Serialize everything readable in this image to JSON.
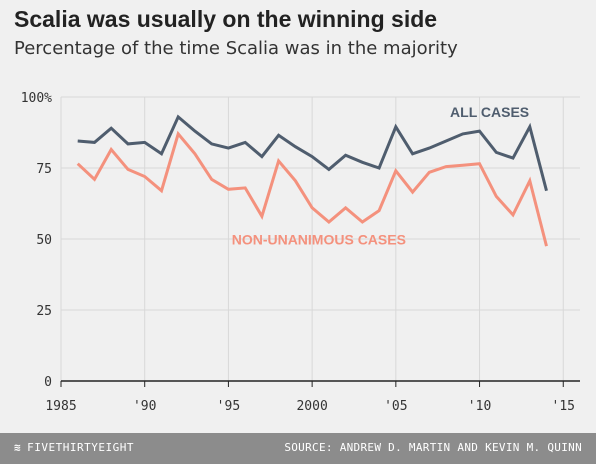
{
  "header": {
    "title": "Scalia was usually on the winning side",
    "subtitle": "Percentage of the time Scalia was in the majority"
  },
  "footer": {
    "brand": "FIVETHIRTYEIGHT",
    "source": "SOURCE: ANDREW D. MARTIN AND KEVIN M. QUINN"
  },
  "colors": {
    "background": "#f0f0f0",
    "all_cases": "#4f5d6e",
    "non_unanimous": "#f4917d",
    "axis": "#222222",
    "grid": "#d8d8d8",
    "footer": "#8c8c8c"
  },
  "chart_data": {
    "type": "line",
    "title": "Scalia was usually on the winning side",
    "subtitle": "Percentage of the time Scalia was in the majority",
    "xlabel": "",
    "ylabel": "",
    "xlim": [
      1985,
      2016
    ],
    "ylim": [
      0,
      100
    ],
    "x_ticks": [
      1985,
      1990,
      1995,
      2000,
      2005,
      2010,
      2015
    ],
    "x_tick_labels": [
      "1985",
      "'90",
      "'95",
      "2000",
      "'05",
      "'10",
      "'15"
    ],
    "y_ticks": [
      0,
      25,
      50,
      75,
      100
    ],
    "y_tick_labels": [
      "0",
      "25",
      "50",
      "75",
      "100%"
    ],
    "grid": true,
    "x": [
      1986,
      1987,
      1988,
      1989,
      1990,
      1991,
      1992,
      1993,
      1994,
      1995,
      1996,
      1997,
      1998,
      1999,
      2000,
      2001,
      2002,
      2003,
      2004,
      2005,
      2006,
      2007,
      2008,
      2009,
      2010,
      2011,
      2012,
      2013,
      2014
    ],
    "series": [
      {
        "name": "ALL CASES",
        "color": "#4f5d6e",
        "values": [
          84.5,
          84,
          89,
          83.5,
          84,
          80,
          93,
          88,
          83.5,
          82,
          84,
          79,
          86.5,
          82.5,
          79,
          74.5,
          79.5,
          77,
          75,
          89.5,
          80,
          82,
          84.5,
          87,
          88,
          80.5,
          78.5,
          89.5,
          67
        ]
      },
      {
        "name": "NON-UNANIMOUS CASES",
        "color": "#f4917d",
        "values": [
          76.5,
          71,
          81.5,
          74.5,
          72,
          67,
          87,
          80,
          71,
          67.5,
          68,
          58,
          77.5,
          70.5,
          61,
          56,
          61,
          56,
          60,
          74,
          66.5,
          73.5,
          75.5,
          76,
          76.5,
          65,
          58.5,
          70.5,
          47.5
        ]
      }
    ]
  }
}
